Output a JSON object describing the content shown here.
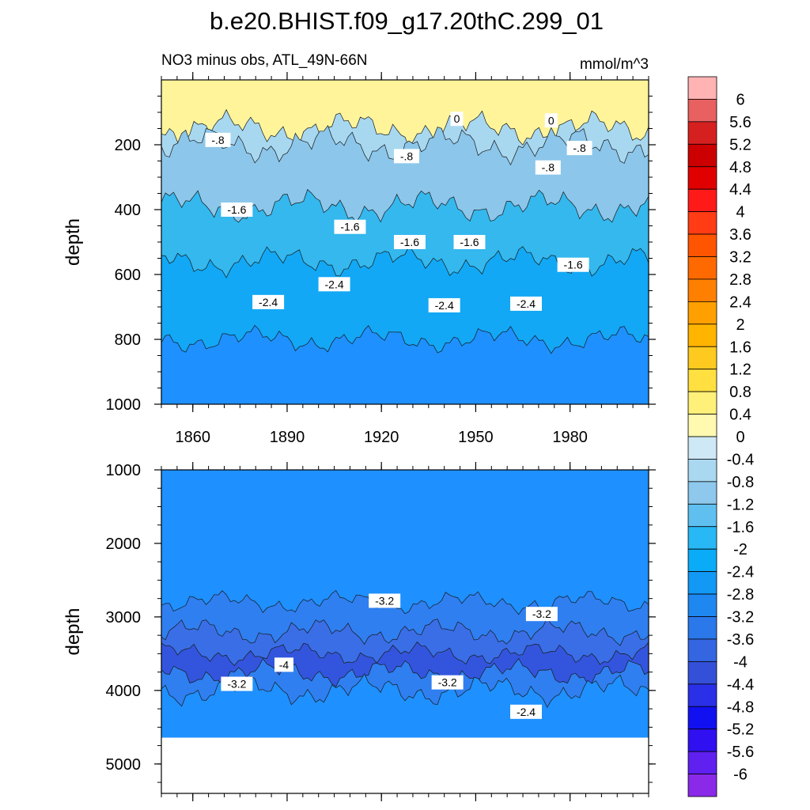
{
  "title": "b.e20.BHIST.f09_g17.20thC.299_01",
  "subtitle_left": "NO3 minus obs, ATL_49N-66N",
  "subtitle_right": "mmol/m^3",
  "chart_data": [
    {
      "type": "heatmap",
      "panel": "upper",
      "ylabel": "depth",
      "xlabel": "",
      "x_tick_labels": [
        "1860",
        "1890",
        "1920",
        "1950",
        "1980"
      ],
      "x_ticks": [
        1860,
        1890,
        1920,
        1950,
        1980
      ],
      "xlim": [
        1850,
        2005
      ],
      "y_tick_labels": [
        "200",
        "400",
        "600",
        "800",
        "1000"
      ],
      "y_ticks": [
        200,
        400,
        600,
        800,
        1000
      ],
      "ylim": [
        0,
        1000
      ],
      "y_reversed": true,
      "bands": [
        {
          "from": 0,
          "to": 150,
          "value": 0.2,
          "color": "#fff49a"
        },
        {
          "from": 150,
          "to": 200,
          "value": -0.6,
          "color": "#a8d8f0"
        },
        {
          "from": 200,
          "to": 390,
          "value": -1.0,
          "color": "#8cc6ea"
        },
        {
          "from": 390,
          "to": 560,
          "value": -1.8,
          "color": "#34b8ee"
        },
        {
          "from": 560,
          "to": 800,
          "value": -2.2,
          "color": "#12a8f5"
        },
        {
          "from": 800,
          "to": 1000,
          "value": -2.6,
          "color": "#1e90ff"
        }
      ],
      "contour_labels": [
        {
          "text": "-.8",
          "x": 1868,
          "y": 185
        },
        {
          "text": "-.8",
          "x": 1928,
          "y": 235
        },
        {
          "text": "0",
          "x": 1944,
          "y": 120
        },
        {
          "text": "0",
          "x": 1974,
          "y": 125
        },
        {
          "text": "-.8",
          "x": 1973,
          "y": 270
        },
        {
          "text": "-.8",
          "x": 1983,
          "y": 210
        },
        {
          "text": "-1.6",
          "x": 1874,
          "y": 400
        },
        {
          "text": "-1.6",
          "x": 1910,
          "y": 453
        },
        {
          "text": "-1.6",
          "x": 1929,
          "y": 500
        },
        {
          "text": "-1.6",
          "x": 1948,
          "y": 500
        },
        {
          "text": "-1.6",
          "x": 1981,
          "y": 570
        },
        {
          "text": "-2.4",
          "x": 1884,
          "y": 685
        },
        {
          "text": "-2.4",
          "x": 1905,
          "y": 630
        },
        {
          "text": "-2.4",
          "x": 1940,
          "y": 695
        },
        {
          "text": "-2.4",
          "x": 1966,
          "y": 690
        }
      ]
    },
    {
      "type": "heatmap",
      "panel": "lower",
      "ylabel": "depth",
      "xlabel": "",
      "x_ticks": [
        1860,
        1890,
        1920,
        1950,
        1980
      ],
      "xlim": [
        1850,
        2005
      ],
      "y_tick_labels": [
        "1000",
        "2000",
        "3000",
        "4000",
        "5000"
      ],
      "y_ticks": [
        1000,
        2000,
        3000,
        4000,
        5000
      ],
      "ylim": [
        1000,
        5400
      ],
      "y_reversed": true,
      "data_bottom": 4640,
      "bands": [
        {
          "from": 1000,
          "to": 2800,
          "value": -2.9,
          "color": "#1e90ff"
        },
        {
          "from": 2800,
          "to": 3200,
          "value": -3.3,
          "color": "#2f7ff0"
        },
        {
          "from": 3200,
          "to": 3500,
          "value": -3.7,
          "color": "#3a6ee6"
        },
        {
          "from": 3500,
          "to": 3760,
          "value": -4.1,
          "color": "#3355dd"
        },
        {
          "from": 3760,
          "to": 4000,
          "value": -3.5,
          "color": "#2f7ff0"
        },
        {
          "from": 4000,
          "to": 4640,
          "value": -2.9,
          "color": "#1e90ff"
        }
      ],
      "contour_labels": [
        {
          "text": "-3.2",
          "x": 1921,
          "y": 2780
        },
        {
          "text": "-3.2",
          "x": 1971,
          "y": 2960
        },
        {
          "text": "-4",
          "x": 1889,
          "y": 3650
        },
        {
          "text": "-3.2",
          "x": 1874,
          "y": 3910
        },
        {
          "text": "-3.2",
          "x": 1941,
          "y": 3890
        },
        {
          "text": "-2.4",
          "x": 1966,
          "y": 4290
        }
      ]
    }
  ],
  "colorbar": {
    "levels": [
      "6",
      "5.6",
      "5.2",
      "4.8",
      "4.4",
      "4",
      "3.6",
      "3.2",
      "2.8",
      "2.4",
      "2",
      "1.6",
      "1.2",
      "0.8",
      "0.4",
      "0",
      "-0.4",
      "-0.8",
      "-1.2",
      "-1.6",
      "-2",
      "-2.4",
      "-2.8",
      "-3.2",
      "-3.6",
      "-4",
      "-4.4",
      "-4.8",
      "-5.2",
      "-5.6",
      "-6"
    ],
    "colors": [
      "#ffb3b3",
      "#e86060",
      "#d62020",
      "#cc0000",
      "#e00000",
      "#ff1a1a",
      "#ff3c14",
      "#ff5500",
      "#ff6a00",
      "#ff8000",
      "#ffa000",
      "#ffb400",
      "#ffca20",
      "#ffe040",
      "#fff07a",
      "#fffab0",
      "#cfe8f5",
      "#aad8f0",
      "#8ec8ec",
      "#5fc0f0",
      "#28b8f5",
      "#0aacf8",
      "#1298f5",
      "#1e88f0",
      "#2a78ea",
      "#3466e2",
      "#3550d8",
      "#2a30e8",
      "#1010f0",
      "#3010f0",
      "#6020f0",
      "#8a2ae8"
    ]
  }
}
